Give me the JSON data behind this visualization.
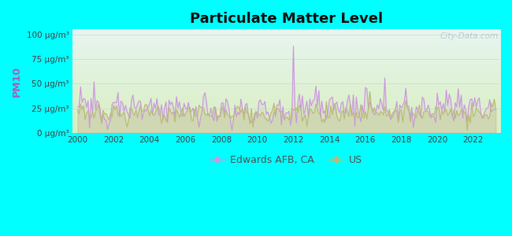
{
  "title": "Particulate Matter Level",
  "ylabel": "PM10",
  "ytick_labels": [
    "0 μg/m³",
    "25 μg/m³",
    "50 μg/m³",
    "75 μg/m³",
    "100 μg/m³"
  ],
  "ytick_values": [
    0,
    25,
    50,
    75,
    100
  ],
  "ylim": [
    0,
    105
  ],
  "xlim": [
    1999.7,
    2023.5
  ],
  "xtick_labels": [
    "2000",
    "2002",
    "2004",
    "2006",
    "2008",
    "2010",
    "2012",
    "2014",
    "2016",
    "2018",
    "2020",
    "2022"
  ],
  "xtick_values": [
    2000,
    2002,
    2004,
    2006,
    2008,
    2010,
    2012,
    2014,
    2016,
    2018,
    2020,
    2022
  ],
  "background_color": "#00FFFF",
  "plot_bg_bottom": "#d8efc0",
  "plot_bg_top": "#e8f5f0",
  "edwards_color": "#cc99dd",
  "us_color": "#bbbb77",
  "legend_edwards": "Edwards AFB, CA",
  "legend_us": "US",
  "watermark": "City-Data.com",
  "grid_color": "#ccddcc",
  "time_start": 2000.0,
  "time_end": 2023.25,
  "n_points": 280
}
